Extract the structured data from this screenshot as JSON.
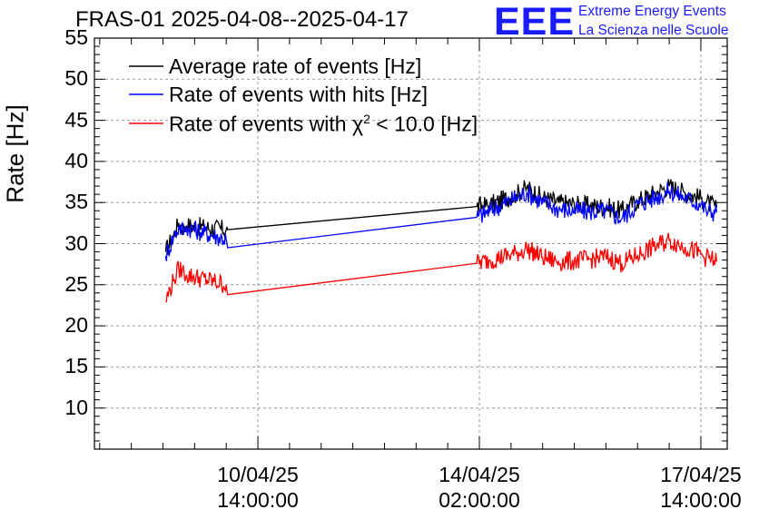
{
  "chart_data": {
    "type": "line",
    "title": "FRAS-01 2025-04-08--2025-04-17",
    "ylabel": "Rate [Hz]",
    "xlabel": "",
    "ylim": [
      5,
      55
    ],
    "yticks": [
      10,
      15,
      20,
      25,
      30,
      35,
      40,
      45,
      50,
      55
    ],
    "x_unit": "hours since 2025-04-08 00:00",
    "xlim": [
      0,
      240
    ],
    "xticks": [
      {
        "hours": 62,
        "date": "10/04/25",
        "time": "14:00:00"
      },
      {
        "hours": 146,
        "date": "14/04/25",
        "time": "02:00:00"
      },
      {
        "hours": 230,
        "date": "17/04/25",
        "time": "14:00:00"
      }
    ],
    "series": [
      {
        "name": "Average rate of events [Hz]",
        "color": "#000000",
        "x": [
          27,
          30,
          32,
          34,
          35,
          50,
          50.5,
          145,
          150,
          160,
          164,
          170,
          176,
          182,
          188,
          194,
          200,
          206,
          212,
          218,
          224,
          230,
          232,
          236
        ],
        "y": [
          29.0,
          31.0,
          32.5,
          31.8,
          32.2,
          31.7,
          31.7,
          34.5,
          34.7,
          36.0,
          36.8,
          35.6,
          35.0,
          34.8,
          34.6,
          34.5,
          34.0,
          35.2,
          36.1,
          37.0,
          36.2,
          35.5,
          35.0,
          34.4
        ]
      },
      {
        "name": "Rate of events with hits [Hz]",
        "color": "#0000ff",
        "x": [
          27,
          30,
          32,
          34,
          35,
          50,
          50.5,
          145,
          150,
          160,
          164,
          170,
          176,
          182,
          188,
          194,
          200,
          206,
          212,
          218,
          224,
          230,
          232,
          236
        ],
        "y": [
          28.5,
          30.8,
          32.0,
          31.5,
          32.0,
          30.5,
          29.5,
          33.2,
          34.0,
          35.6,
          36.2,
          35.0,
          34.2,
          34.0,
          33.9,
          34.0,
          33.0,
          34.8,
          35.5,
          36.4,
          35.6,
          34.8,
          34.0,
          33.8
        ]
      },
      {
        "name": "Rate of events with χ² < 10.0 [Hz]",
        "color": "#ff0000",
        "x": [
          27,
          30,
          32,
          34,
          35,
          50,
          50.5,
          145,
          150,
          160,
          164,
          170,
          176,
          182,
          188,
          194,
          200,
          206,
          212,
          218,
          224,
          230,
          232,
          236
        ],
        "y": [
          23.0,
          25.5,
          27.0,
          26.5,
          26.2,
          25.0,
          23.8,
          27.6,
          28.0,
          28.8,
          29.4,
          28.3,
          27.8,
          27.9,
          28.1,
          28.4,
          27.6,
          28.6,
          29.6,
          30.4,
          29.6,
          28.7,
          28.3,
          27.8
        ]
      }
    ]
  },
  "logo": {
    "text": "EEE",
    "line1": "Extreme Energy Events",
    "line2": "La Scienza nelle Scuole"
  },
  "legend": {
    "avg": "Average rate of events [Hz]",
    "hits": "Rate of events with hits [Hz]",
    "chi_prefix": "Rate of events with χ",
    "chi_exp": "2",
    "chi_suffix": " < 10.0 [Hz]"
  }
}
